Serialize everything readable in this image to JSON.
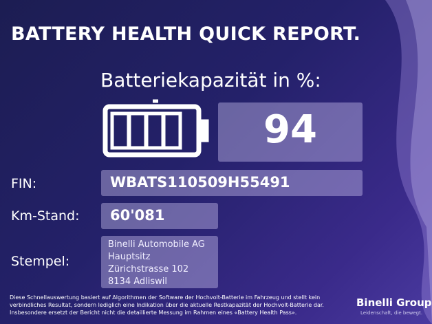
{
  "header": {
    "title": "BATTERY HEALTH QUICK REPORT."
  },
  "capacity": {
    "label": "Batteriekapazität in %:",
    "value": 94
  },
  "fin": {
    "label": "FIN:",
    "value": "WBATS110509H55491"
  },
  "km": {
    "label": "Km-Stand:",
    "value": "60'081"
  },
  "stamp": {
    "label": "Stempel:",
    "lines": [
      "Binelli Automobile AG",
      "Hauptsitz",
      "Zürichstrasse 102",
      "8134 Adliswil"
    ]
  },
  "disclaimer": {
    "lines": [
      "Diese Schnellauswertung basiert auf Algorithmen der Software der Hochvolt-Batterie im Fahrzeug und stellt kein",
      "verbindliches Resultat, sondern lediglich eine Indikation über die aktuelle Restkapazität der Hochvolt-Batterie dar.",
      "Insbesondere ersetzt der Bericht nicht die detaillierte Messung im Rahmen eines «Battery Health Pass»."
    ]
  },
  "logo": {
    "name": "Binelli Group",
    "tagline": "Leidenschaft, die bewegt."
  }
}
